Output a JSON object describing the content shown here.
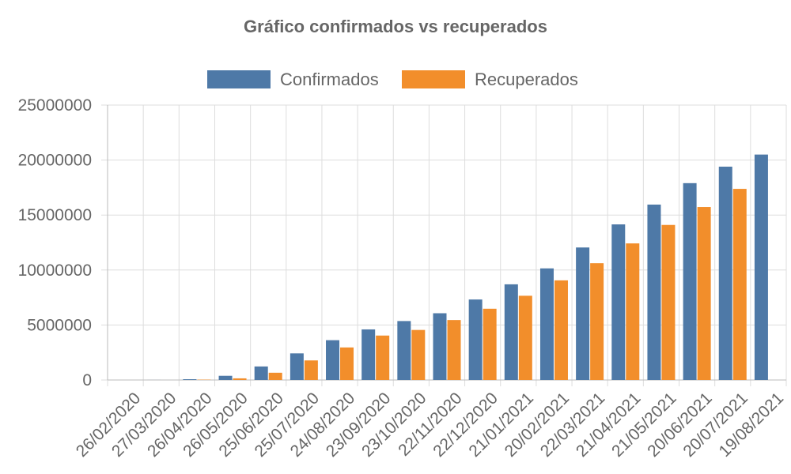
{
  "chart_data": {
    "type": "bar",
    "title": "Gráfico confirmados vs recuperados",
    "xlabel": "",
    "ylabel": "",
    "ylim": [
      0,
      25000000
    ],
    "yticks": [
      "0",
      "5000000",
      "10000000",
      "15000000",
      "20000000",
      "25000000"
    ],
    "grid": true,
    "legend_position": "top",
    "categories": [
      "26/02/2020",
      "27/03/2020",
      "26/04/2020",
      "26/05/2020",
      "25/06/2020",
      "25/07/2020",
      "24/08/2020",
      "23/09/2020",
      "23/10/2020",
      "22/11/2020",
      "22/12/2020",
      "21/01/2021",
      "20/02/2021",
      "22/03/2021",
      "21/04/2021",
      "21/05/2021",
      "20/06/2021",
      "20/07/2021",
      "19/08/2021"
    ],
    "series": [
      {
        "name": "Confirmados",
        "color": "#4e79a7",
        "values": [
          0,
          3000,
          70000,
          380000,
          1230000,
          2420000,
          3620000,
          4600000,
          5360000,
          6070000,
          7320000,
          8700000,
          10150000,
          12050000,
          14150000,
          15950000,
          17900000,
          19400000,
          20500000
        ]
      },
      {
        "name": "Recuperados",
        "color": "#f28e2b",
        "values": [
          0,
          0,
          30000,
          150000,
          660000,
          1780000,
          2960000,
          4040000,
          4550000,
          5450000,
          6480000,
          7660000,
          9060000,
          10620000,
          12420000,
          14100000,
          15730000,
          17380000,
          null
        ]
      }
    ]
  }
}
